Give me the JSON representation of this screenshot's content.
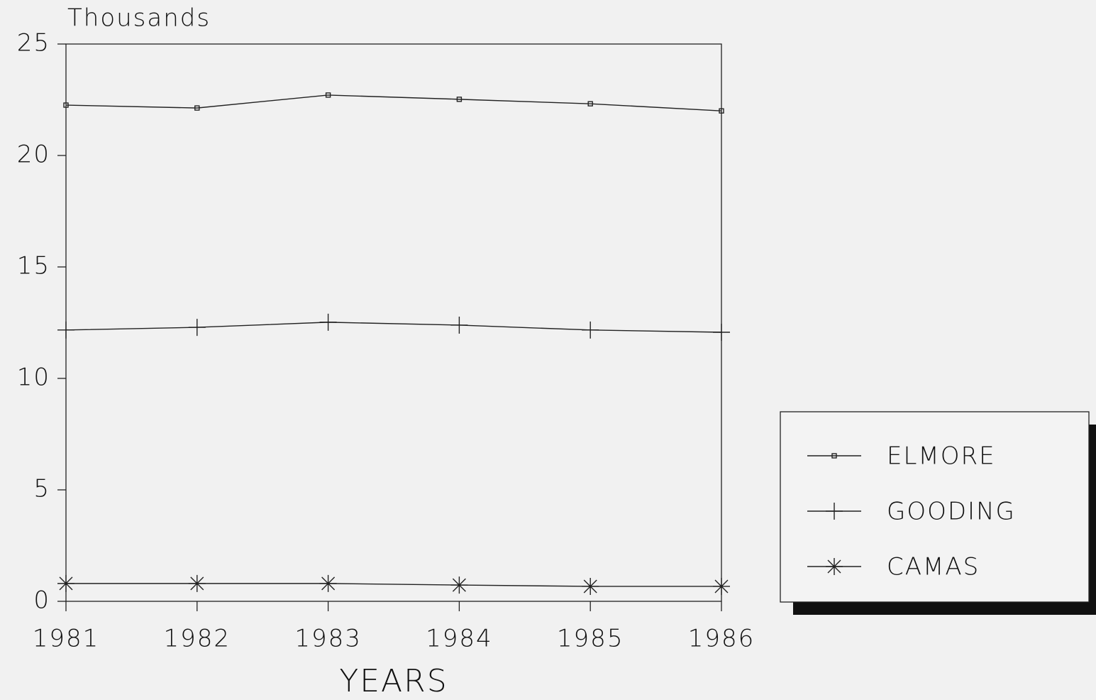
{
  "chart_data": {
    "type": "line",
    "y_axis_label": "Thousands",
    "x_axis_label": "YEARS",
    "x": [
      1981,
      1982,
      1983,
      1984,
      1985,
      1986
    ],
    "xlim": [
      1981,
      1986
    ],
    "xticks": [
      1981,
      1982,
      1983,
      1984,
      1985,
      1986
    ],
    "ylim": [
      0,
      25
    ],
    "yticks": [
      0,
      5,
      10,
      15,
      20,
      25
    ],
    "grid": false,
    "legend": "right",
    "series": [
      {
        "name": "ELMORE",
        "color": "#222222",
        "marker": "square",
        "values": [
          22.26,
          22.13,
          22.71,
          22.52,
          22.32,
          22.0
        ]
      },
      {
        "name": "GOODING",
        "color": "#222222",
        "marker": "plus",
        "values": [
          12.17,
          12.29,
          12.52,
          12.39,
          12.17,
          12.07
        ]
      },
      {
        "name": "CAMAS",
        "color": "#222222",
        "marker": "asterisk",
        "values": [
          0.8,
          0.8,
          0.8,
          0.73,
          0.67,
          0.67
        ]
      }
    ]
  }
}
